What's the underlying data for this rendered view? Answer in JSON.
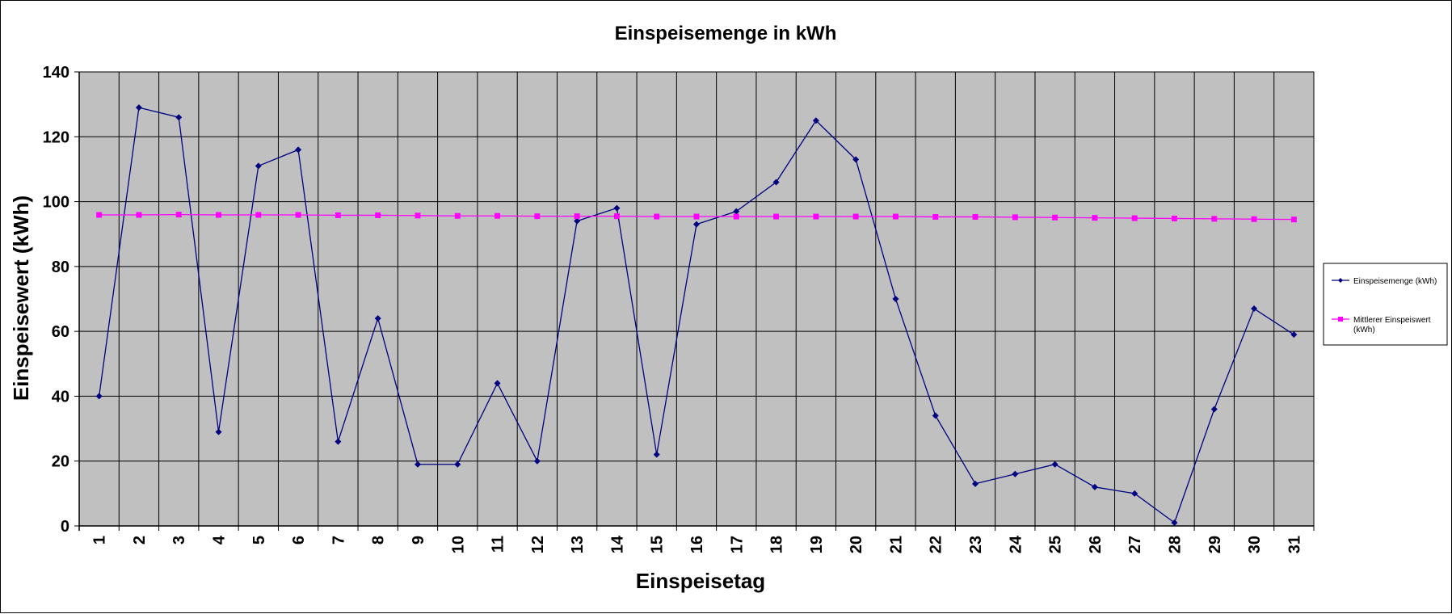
{
  "chart_data": {
    "type": "line",
    "title": "Einspeisemenge in kWh",
    "xlabel": "Einspeisetag",
    "ylabel": "Einspeisewert  (kWh)",
    "ylim": [
      0,
      140
    ],
    "yticks": [
      "0",
      "20",
      "40",
      "60",
      "80",
      "100",
      "120",
      "140"
    ],
    "categories": [
      "1",
      "2",
      "3",
      "4",
      "5",
      "6",
      "7",
      "8",
      "9",
      "10",
      "11",
      "12",
      "13",
      "14",
      "15",
      "16",
      "17",
      "18",
      "19",
      "20",
      "21",
      "22",
      "23",
      "24",
      "25",
      "26",
      "27",
      "28",
      "29",
      "30",
      "31"
    ],
    "grid": true,
    "legend_position": "right",
    "series": [
      {
        "name": "Einspeisemenge (kWh)",
        "color": "#000080",
        "marker": "diamond",
        "values": [
          40,
          129,
          126,
          29,
          111,
          116,
          26,
          64,
          19,
          19,
          44,
          20,
          94,
          98,
          22,
          93,
          97,
          106,
          125,
          113,
          70,
          34,
          13,
          16,
          19,
          12,
          10,
          1,
          36,
          67,
          59
        ]
      },
      {
        "name": "Mittlerer Einspeiswert (kWh)",
        "color": "#ff00ff",
        "marker": "square",
        "values": [
          95.9,
          95.9,
          96.0,
          95.9,
          95.9,
          95.9,
          95.8,
          95.8,
          95.7,
          95.6,
          95.6,
          95.5,
          95.5,
          95.5,
          95.4,
          95.4,
          95.4,
          95.4,
          95.4,
          95.4,
          95.4,
          95.3,
          95.3,
          95.2,
          95.1,
          95.0,
          94.9,
          94.8,
          94.7,
          94.6,
          94.5
        ]
      }
    ],
    "legend_lines": [
      [
        "Einspeisemenge (kWh)"
      ],
      [
        "Mittlerer Einspeiswert",
        "(kWh)"
      ]
    ]
  }
}
